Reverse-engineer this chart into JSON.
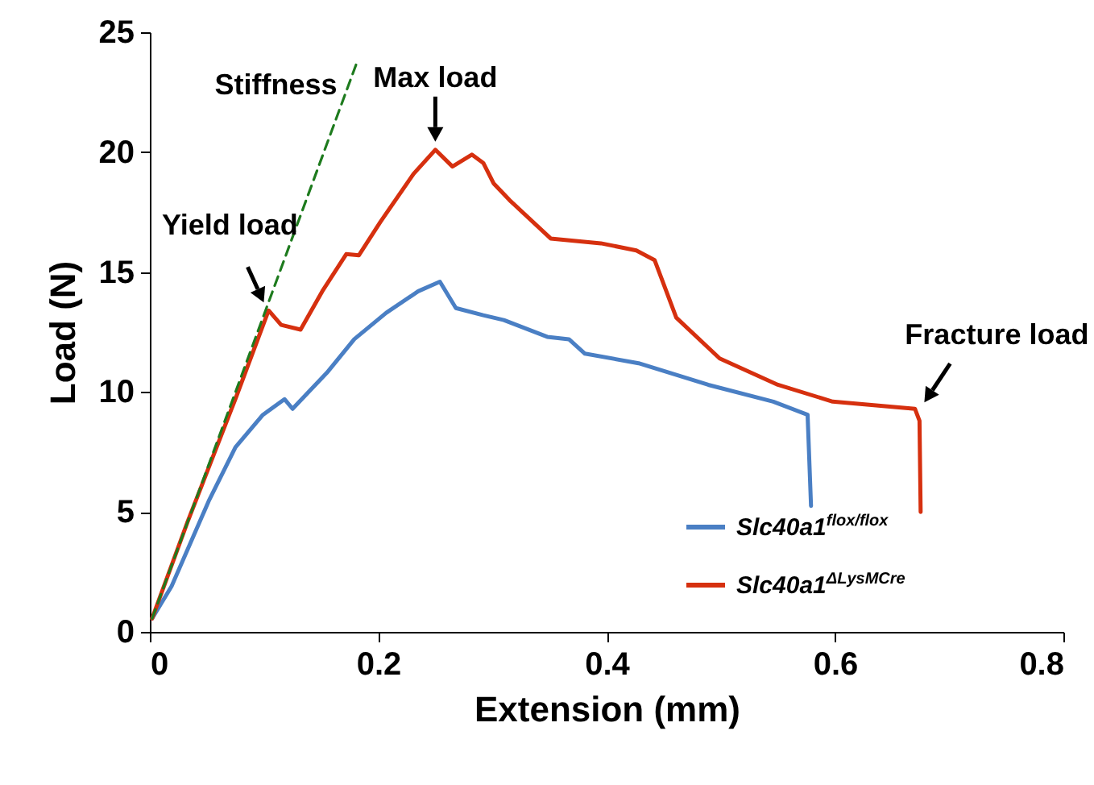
{
  "chart_data": {
    "type": "line",
    "xlabel": "Extension (mm)",
    "ylabel": "Load (N)",
    "xlim": [
      0,
      0.8
    ],
    "ylim": [
      0,
      25
    ],
    "xticks": [
      0,
      0.2,
      0.4,
      0.6,
      0.8
    ],
    "yticks": [
      0,
      5,
      10,
      15,
      20,
      25
    ],
    "legend": "bottom right",
    "series": [
      {
        "name": "Slc40a1$^{flox/flox}$",
        "color": "#4a7fc4",
        "x": [
          0.002,
          0.019,
          0.052,
          0.075,
          0.099,
          0.118,
          0.125,
          0.155,
          0.179,
          0.207,
          0.235,
          0.254,
          0.268,
          0.292,
          0.31,
          0.348,
          0.367,
          0.381,
          0.428,
          0.489,
          0.546,
          0.576,
          0.579
        ],
        "values": [
          0.56,
          1.9,
          5.5,
          7.7,
          9.05,
          9.7,
          9.3,
          10.8,
          12.2,
          13.3,
          14.2,
          14.6,
          13.5,
          13.2,
          13.0,
          12.3,
          12.2,
          11.6,
          11.2,
          10.3,
          9.6,
          9.05,
          5.25
        ]
      },
      {
        "name": "Slc40a1$^{ΔLysMCre}$",
        "color": "#d6300f",
        "x": [
          0.002,
          0.033,
          0.075,
          0.104,
          0.115,
          0.132,
          0.151,
          0.172,
          0.183,
          0.202,
          0.231,
          0.25,
          0.265,
          0.282,
          0.292,
          0.301,
          0.315,
          0.351,
          0.395,
          0.426,
          0.442,
          0.461,
          0.499,
          0.55,
          0.598,
          0.67,
          0.674,
          0.675
        ],
        "values": [
          0.56,
          4.58,
          9.72,
          13.4,
          12.8,
          12.6,
          14.2,
          15.75,
          15.7,
          17.1,
          19.1,
          20.1,
          19.4,
          19.9,
          19.55,
          18.7,
          18.0,
          16.4,
          16.2,
          15.9,
          15.5,
          13.1,
          11.4,
          10.3,
          9.6,
          9.3,
          8.8,
          5.0
        ]
      },
      {
        "color": "#1e7b1e",
        "line_style": "dashed",
        "x": [
          0.002,
          0.181
        ],
        "values": [
          0.56,
          23.7
        ]
      }
    ],
    "annotations": [
      {
        "text": "Stiffness",
        "x": 0.181,
        "y": 23.7
      },
      {
        "text": "Max load",
        "x": 0.25,
        "y": 20.1
      },
      {
        "text": "Yield load",
        "x": 0.104,
        "y": 13.4
      },
      {
        "text": "Fracture load",
        "x": 0.674,
        "y": 9.3
      }
    ]
  }
}
